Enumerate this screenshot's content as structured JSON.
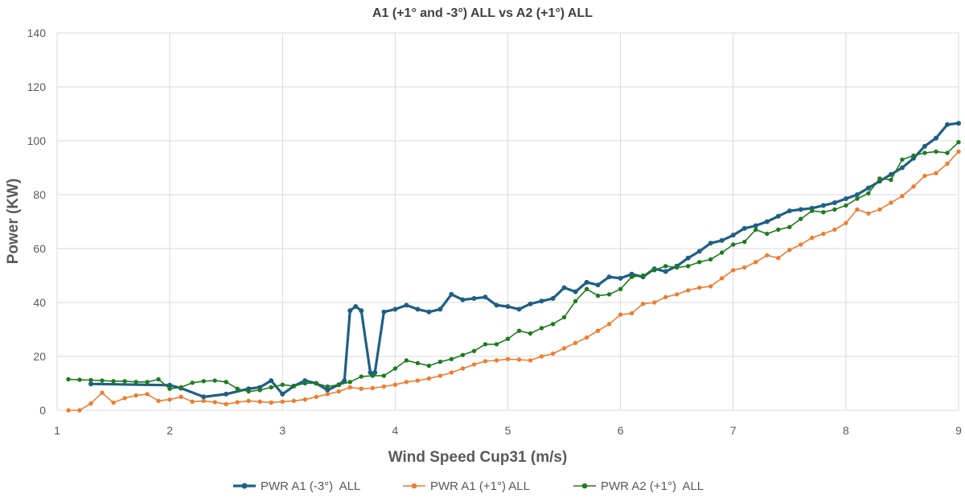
{
  "chart_data": {
    "type": "line",
    "title": "A1 (+1° and -3°) ALL  vs  A2 (+1°) ALL",
    "xlabel": "Wind Speed Cup31 (m/s)",
    "ylabel": "Power (KW)",
    "xlim": [
      1,
      9
    ],
    "ylim": [
      0,
      140
    ],
    "xticks": [
      1,
      2,
      3,
      4,
      5,
      6,
      7,
      8,
      9
    ],
    "yticks": [
      0,
      20,
      40,
      60,
      80,
      100,
      120,
      140
    ],
    "grid": true,
    "legend_position": "bottom",
    "series": [
      {
        "name": "PWR A1 (-3°)  ALL",
        "color": "#1f5f85",
        "points": [
          [
            1.3,
            9.8
          ],
          [
            2.0,
            9.3
          ],
          [
            2.1,
            8.2
          ],
          [
            2.3,
            5.0
          ],
          [
            2.5,
            6.0
          ],
          [
            2.7,
            8.0
          ],
          [
            2.8,
            8.5
          ],
          [
            2.9,
            11.0
          ],
          [
            3.0,
            6.0
          ],
          [
            3.1,
            9.0
          ],
          [
            3.2,
            11.0
          ],
          [
            3.3,
            10.0
          ],
          [
            3.4,
            7.5
          ],
          [
            3.5,
            9.5
          ],
          [
            3.55,
            11.0
          ],
          [
            3.6,
            37.0
          ],
          [
            3.65,
            38.5
          ],
          [
            3.7,
            37.0
          ],
          [
            3.78,
            14.0
          ],
          [
            3.8,
            13.0
          ],
          [
            3.82,
            14.0
          ],
          [
            3.9,
            36.5
          ],
          [
            4.0,
            37.5
          ],
          [
            4.1,
            39.0
          ],
          [
            4.2,
            37.5
          ],
          [
            4.3,
            36.5
          ],
          [
            4.4,
            37.5
          ],
          [
            4.5,
            43.0
          ],
          [
            4.6,
            41.0
          ],
          [
            4.7,
            41.5
          ],
          [
            4.8,
            42.0
          ],
          [
            4.9,
            39.0
          ],
          [
            5.0,
            38.5
          ],
          [
            5.1,
            37.5
          ],
          [
            5.2,
            39.5
          ],
          [
            5.3,
            40.5
          ],
          [
            5.4,
            41.5
          ],
          [
            5.5,
            45.5
          ],
          [
            5.6,
            44.0
          ],
          [
            5.7,
            47.5
          ],
          [
            5.8,
            46.5
          ],
          [
            5.9,
            49.5
          ],
          [
            6.0,
            49.0
          ],
          [
            6.1,
            50.5
          ],
          [
            6.2,
            49.5
          ],
          [
            6.3,
            52.5
          ],
          [
            6.4,
            51.5
          ],
          [
            6.5,
            53.5
          ],
          [
            6.6,
            56.5
          ],
          [
            6.7,
            59.0
          ],
          [
            6.8,
            62.0
          ],
          [
            6.9,
            63.0
          ],
          [
            7.0,
            65.0
          ],
          [
            7.1,
            67.5
          ],
          [
            7.2,
            68.5
          ],
          [
            7.3,
            70.0
          ],
          [
            7.4,
            72.0
          ],
          [
            7.5,
            74.0
          ],
          [
            7.6,
            74.5
          ],
          [
            7.7,
            75.0
          ],
          [
            7.8,
            76.0
          ],
          [
            7.9,
            77.0
          ],
          [
            8.0,
            78.5
          ],
          [
            8.1,
            80.0
          ],
          [
            8.2,
            82.5
          ],
          [
            8.3,
            85.0
          ],
          [
            8.4,
            87.5
          ],
          [
            8.5,
            90.0
          ],
          [
            8.6,
            93.5
          ],
          [
            8.7,
            98.0
          ],
          [
            8.8,
            101.0
          ],
          [
            8.9,
            106.0
          ],
          [
            9.0,
            106.5
          ]
        ]
      },
      {
        "name": "PWR A1 (+1°) ALL",
        "color": "#ed7d31",
        "points": [
          [
            1.1,
            0.0
          ],
          [
            1.2,
            0.0
          ],
          [
            1.3,
            2.5
          ],
          [
            1.4,
            6.5
          ],
          [
            1.5,
            2.8
          ],
          [
            1.6,
            4.5
          ],
          [
            1.7,
            5.5
          ],
          [
            1.8,
            6.0
          ],
          [
            1.9,
            3.5
          ],
          [
            2.0,
            4.0
          ],
          [
            2.1,
            5.0
          ],
          [
            2.2,
            3.2
          ],
          [
            2.3,
            3.5
          ],
          [
            2.4,
            3.0
          ],
          [
            2.5,
            2.3
          ],
          [
            2.6,
            3.0
          ],
          [
            2.7,
            3.5
          ],
          [
            2.8,
            3.2
          ],
          [
            2.9,
            2.9
          ],
          [
            3.0,
            3.2
          ],
          [
            3.1,
            3.5
          ],
          [
            3.2,
            4.0
          ],
          [
            3.3,
            5.0
          ],
          [
            3.4,
            6.0
          ],
          [
            3.5,
            7.0
          ],
          [
            3.6,
            8.5
          ],
          [
            3.7,
            8.0
          ],
          [
            3.8,
            8.2
          ],
          [
            3.9,
            8.8
          ],
          [
            4.0,
            9.5
          ],
          [
            4.1,
            10.5
          ],
          [
            4.2,
            11.0
          ],
          [
            4.3,
            11.8
          ],
          [
            4.4,
            12.8
          ],
          [
            4.5,
            14.0
          ],
          [
            4.6,
            15.5
          ],
          [
            4.7,
            17.0
          ],
          [
            4.8,
            18.2
          ],
          [
            4.9,
            18.5
          ],
          [
            5.0,
            19.0
          ],
          [
            5.1,
            18.8
          ],
          [
            5.2,
            18.5
          ],
          [
            5.3,
            20.0
          ],
          [
            5.4,
            21.0
          ],
          [
            5.5,
            23.0
          ],
          [
            5.6,
            25.0
          ],
          [
            5.7,
            27.0
          ],
          [
            5.8,
            29.5
          ],
          [
            5.9,
            32.0
          ],
          [
            6.0,
            35.5
          ],
          [
            6.1,
            36.0
          ],
          [
            6.2,
            39.5
          ],
          [
            6.3,
            40.0
          ],
          [
            6.4,
            42.0
          ],
          [
            6.5,
            43.0
          ],
          [
            6.6,
            44.5
          ],
          [
            6.7,
            45.5
          ],
          [
            6.8,
            46.0
          ],
          [
            6.9,
            49.0
          ],
          [
            7.0,
            52.0
          ],
          [
            7.1,
            53.0
          ],
          [
            7.2,
            55.0
          ],
          [
            7.3,
            57.5
          ],
          [
            7.4,
            56.5
          ],
          [
            7.5,
            59.5
          ],
          [
            7.6,
            61.5
          ],
          [
            7.7,
            64.0
          ],
          [
            7.8,
            65.5
          ],
          [
            7.9,
            67.0
          ],
          [
            8.0,
            69.5
          ],
          [
            8.1,
            74.5
          ],
          [
            8.2,
            73.0
          ],
          [
            8.3,
            74.5
          ],
          [
            8.4,
            77.0
          ],
          [
            8.5,
            79.5
          ],
          [
            8.6,
            83.0
          ],
          [
            8.7,
            87.0
          ],
          [
            8.8,
            88.0
          ],
          [
            8.9,
            91.5
          ],
          [
            9.0,
            96.0
          ]
        ]
      },
      {
        "name": "PWR A2 (+1°)  ALL",
        "color": "#1e7b1e",
        "points": [
          [
            1.1,
            11.5
          ],
          [
            1.2,
            11.3
          ],
          [
            1.3,
            11.2
          ],
          [
            1.4,
            11.0
          ],
          [
            1.5,
            10.8
          ],
          [
            1.6,
            10.8
          ],
          [
            1.7,
            10.5
          ],
          [
            1.8,
            10.5
          ],
          [
            1.9,
            11.5
          ],
          [
            2.0,
            8.0
          ],
          [
            2.1,
            8.5
          ],
          [
            2.2,
            10.2
          ],
          [
            2.3,
            10.8
          ],
          [
            2.4,
            11.0
          ],
          [
            2.5,
            10.5
          ],
          [
            2.6,
            8.0
          ],
          [
            2.7,
            7.0
          ],
          [
            2.8,
            7.5
          ],
          [
            2.9,
            8.5
          ],
          [
            3.0,
            9.5
          ],
          [
            3.1,
            9.0
          ],
          [
            3.2,
            10.0
          ],
          [
            3.3,
            10.0
          ],
          [
            3.4,
            8.8
          ],
          [
            3.5,
            9.5
          ],
          [
            3.6,
            10.5
          ],
          [
            3.7,
            12.5
          ],
          [
            3.8,
            12.8
          ],
          [
            3.9,
            12.8
          ],
          [
            4.0,
            15.5
          ],
          [
            4.1,
            18.5
          ],
          [
            4.2,
            17.5
          ],
          [
            4.3,
            16.5
          ],
          [
            4.4,
            18.0
          ],
          [
            4.5,
            19.0
          ],
          [
            4.6,
            20.5
          ],
          [
            4.7,
            22.0
          ],
          [
            4.8,
            24.5
          ],
          [
            4.9,
            24.5
          ],
          [
            5.0,
            26.5
          ],
          [
            5.1,
            29.5
          ],
          [
            5.2,
            28.5
          ],
          [
            5.3,
            30.5
          ],
          [
            5.4,
            32.0
          ],
          [
            5.5,
            34.5
          ],
          [
            5.6,
            40.5
          ],
          [
            5.7,
            45.0
          ],
          [
            5.8,
            42.5
          ],
          [
            5.9,
            43.0
          ],
          [
            6.0,
            45.0
          ],
          [
            6.1,
            49.5
          ],
          [
            6.2,
            50.0
          ],
          [
            6.3,
            52.0
          ],
          [
            6.4,
            53.5
          ],
          [
            6.5,
            53.0
          ],
          [
            6.6,
            53.5
          ],
          [
            6.7,
            55.0
          ],
          [
            6.8,
            56.0
          ],
          [
            6.9,
            58.5
          ],
          [
            7.0,
            61.5
          ],
          [
            7.1,
            62.5
          ],
          [
            7.2,
            67.0
          ],
          [
            7.3,
            65.5
          ],
          [
            7.4,
            67.0
          ],
          [
            7.5,
            68.0
          ],
          [
            7.6,
            71.0
          ],
          [
            7.7,
            74.0
          ],
          [
            7.8,
            73.5
          ],
          [
            7.9,
            74.5
          ],
          [
            8.0,
            76.0
          ],
          [
            8.1,
            78.5
          ],
          [
            8.2,
            80.5
          ],
          [
            8.3,
            86.0
          ],
          [
            8.4,
            85.5
          ],
          [
            8.5,
            93.0
          ],
          [
            8.6,
            94.5
          ],
          [
            8.7,
            95.5
          ],
          [
            8.8,
            96.0
          ],
          [
            8.9,
            95.5
          ],
          [
            9.0,
            99.5
          ]
        ]
      }
    ]
  }
}
